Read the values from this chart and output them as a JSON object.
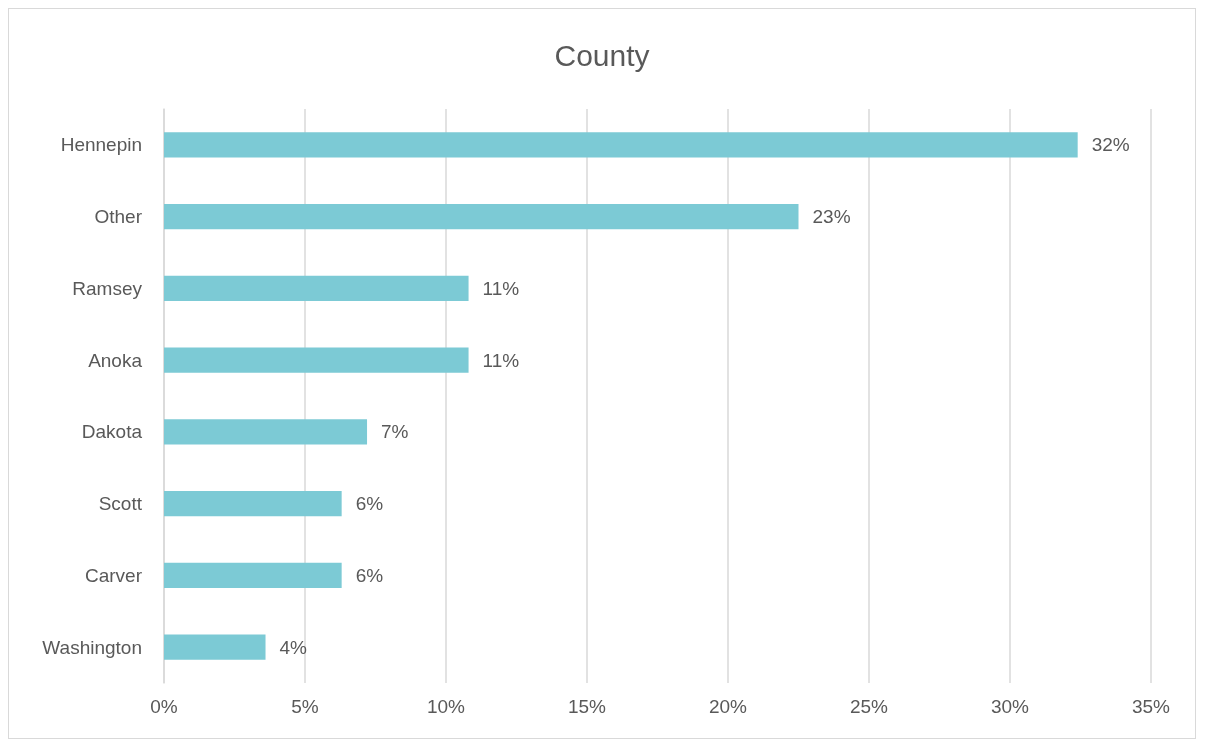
{
  "chart_data": {
    "type": "bar",
    "orientation": "horizontal",
    "title": "County",
    "categories": [
      "Hennepin",
      "Other",
      "Ramsey",
      "Anoka",
      "Dakota",
      "Scott",
      "Carver",
      "Washington"
    ],
    "values": [
      32.4,
      22.5,
      10.8,
      10.8,
      7.2,
      6.3,
      6.3,
      3.6
    ],
    "value_labels": [
      "32%",
      "23%",
      "11%",
      "11%",
      "7%",
      "6%",
      "6%",
      "4%"
    ],
    "color": "#7ccad5",
    "xlim": [
      0,
      35
    ],
    "xticks": [
      {
        "value": 0,
        "label": "0%"
      },
      {
        "value": 5,
        "label": "5%"
      },
      {
        "value": 10,
        "label": "10%"
      },
      {
        "value": 15,
        "label": "15%"
      },
      {
        "value": 20,
        "label": "20%"
      },
      {
        "value": 25,
        "label": "25%"
      },
      {
        "value": 30,
        "label": "30%"
      },
      {
        "value": 35,
        "label": "35%"
      }
    ],
    "grid": "x"
  }
}
